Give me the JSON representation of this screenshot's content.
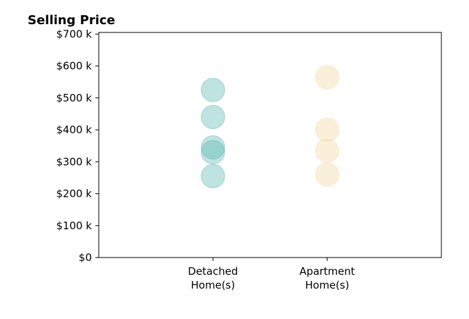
{
  "chart_data": {
    "type": "scatter",
    "title": "Selling Price",
    "xlabel": "",
    "ylabel": "",
    "categories": [
      "Detached\nHome(s)",
      "Apartment\nHome(s)"
    ],
    "ylim": [
      0,
      705000
    ],
    "xlim": [
      -1,
      2
    ],
    "yticks": [
      {
        "value": 0,
        "label": "$0"
      },
      {
        "value": 100000,
        "label": "$100 k"
      },
      {
        "value": 200000,
        "label": "$200 k"
      },
      {
        "value": 300000,
        "label": "$300 k"
      },
      {
        "value": 400000,
        "label": "$400 k"
      },
      {
        "value": 500000,
        "label": "$500 k"
      },
      {
        "value": 600000,
        "label": "$600 k"
      },
      {
        "value": 700000,
        "label": "$700 k"
      }
    ],
    "grid": false,
    "series": [
      {
        "category": "Detached\nHome(s)",
        "color": "#5fb8b2",
        "values": [
          525000,
          440000,
          345000,
          330000,
          255000
        ]
      },
      {
        "category": "Apartment\nHome(s)",
        "color": "#f3d9a3",
        "values": [
          565000,
          400000,
          335000,
          260000
        ]
      }
    ]
  }
}
